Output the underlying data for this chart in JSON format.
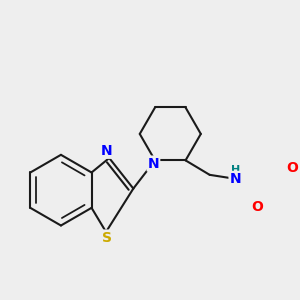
{
  "background_color": "#eeeeee",
  "line_color": "#1a1a1a",
  "bond_width": 1.5,
  "atom_colors": {
    "N": "#0000ff",
    "O": "#ff0000",
    "S": "#ccaa00",
    "H": "#008080",
    "C": "#1a1a1a"
  },
  "font_size": 9
}
